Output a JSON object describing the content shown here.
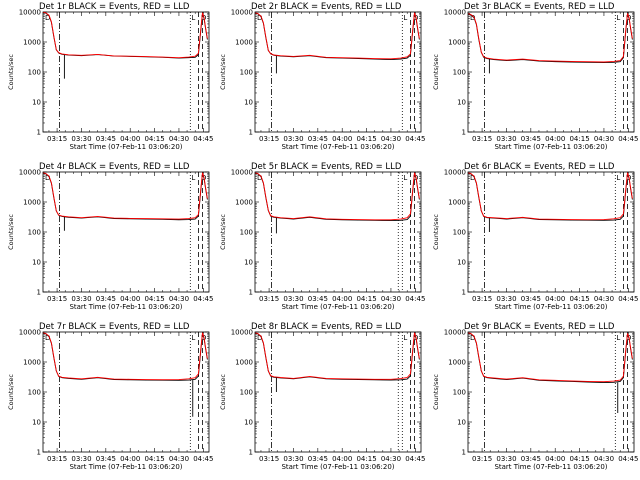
{
  "chart_data": {
    "type": "line",
    "layout": "3x3 grid",
    "shared": {
      "xlabel": "Start Time (07-Feb-11 03:06:20)",
      "ylabel": "Counts/sec",
      "x_tick_labels": [
        "03:15",
        "03:30",
        "03:45",
        "04:00",
        "04:15",
        "04:30",
        "04:45"
      ],
      "x_tick_minutes": [
        15,
        30,
        45,
        60,
        75,
        90,
        105
      ],
      "x_range_minutes": [
        6.33,
        108.5
      ],
      "y_scale": "log",
      "y_range": [
        1,
        10000
      ],
      "y_tick_labels": [
        "1",
        "10",
        "100",
        "1000",
        "10000"
      ],
      "y_tick_values": [
        1,
        10,
        100,
        1000,
        10000
      ],
      "grid": false,
      "series_colors": {
        "events": "#000000",
        "lld": "#ff0000"
      },
      "corner_marks": [
        "D",
        "L",
        "D"
      ]
    },
    "panels": [
      {
        "title": "Det 1r BLACK = Events, RED = LLD",
        "black_x": [
          6.5,
          8,
          10,
          11.5,
          13,
          14.5,
          16,
          18,
          22,
          30,
          40,
          50,
          60,
          70,
          80,
          90,
          96,
          100,
          102,
          103.5,
          104.5,
          105.5,
          106.5,
          107.5
        ],
        "black_y": [
          9500,
          9200,
          7500,
          4500,
          1500,
          550,
          430,
          390,
          370,
          350,
          380,
          340,
          330,
          320,
          310,
          290,
          300,
          310,
          380,
          2600,
          9000,
          6000,
          2500,
          1200
        ],
        "red_x": [
          6.5,
          8,
          10,
          11.5,
          13,
          14.5,
          16,
          18,
          22,
          30,
          40,
          50,
          60,
          70,
          80,
          90,
          96,
          100,
          102,
          103.5,
          104.5,
          105.5,
          106.5,
          107.5
        ],
        "red_y": [
          9800,
          9400,
          7800,
          4700,
          1600,
          560,
          440,
          400,
          375,
          360,
          385,
          345,
          335,
          325,
          315,
          300,
          315,
          335,
          420,
          3000,
          9500,
          6500,
          2700,
          1300
        ],
        "spike": {
          "x": 19.5,
          "y": 60
        },
        "dash_dot_x": 16.5,
        "dotted_x": [
          97
        ],
        "dashed_x": [
          102,
          104.5
        ]
      },
      {
        "title": "Det 2r BLACK = Events, RED = LLD",
        "black_x": [
          6.5,
          8,
          10,
          11.5,
          13,
          14.5,
          16,
          18,
          22,
          30,
          40,
          50,
          60,
          70,
          80,
          90,
          96,
          100,
          102,
          103.5,
          104.5,
          105.5,
          106.5,
          107.5
        ],
        "black_y": [
          9000,
          8800,
          7000,
          4200,
          1400,
          520,
          400,
          360,
          340,
          320,
          350,
          300,
          290,
          280,
          270,
          260,
          270,
          290,
          360,
          2600,
          9000,
          6000,
          2500,
          1200
        ],
        "red_x": [
          6.5,
          8,
          10,
          11.5,
          13,
          14.5,
          16,
          18,
          22,
          30,
          40,
          50,
          60,
          70,
          80,
          90,
          96,
          100,
          102,
          103.5,
          104.5,
          105.5,
          106.5,
          107.5
        ],
        "red_y": [
          9300,
          9000,
          7300,
          4400,
          1500,
          530,
          410,
          370,
          350,
          330,
          360,
          310,
          300,
          290,
          280,
          275,
          290,
          320,
          400,
          3000,
          9500,
          6500,
          2700,
          1300
        ],
        "spike": {
          "x": 19.5,
          "y": 90
        },
        "dash_dot_x": 16.5,
        "dotted_x": [
          97
        ],
        "dashed_x": [
          102,
          104.5
        ]
      },
      {
        "title": "Det 3r BLACK = Events, RED = LLD",
        "black_x": [
          6.5,
          8,
          10,
          11.5,
          13,
          14.5,
          16,
          18,
          22,
          30,
          40,
          50,
          60,
          70,
          80,
          90,
          96,
          100,
          102,
          103.5,
          104.5,
          105.5,
          106.5,
          107.5
        ],
        "black_y": [
          8500,
          8000,
          6500,
          3800,
          1200,
          450,
          310,
          280,
          260,
          240,
          260,
          230,
          220,
          215,
          210,
          205,
          210,
          220,
          300,
          2500,
          8500,
          6000,
          2500,
          1200
        ],
        "red_x": [
          6.5,
          8,
          10,
          11.5,
          13,
          14.5,
          16,
          18,
          22,
          30,
          40,
          50,
          60,
          70,
          80,
          90,
          96,
          100,
          102,
          103.5,
          104.5,
          105.5,
          106.5,
          107.5
        ],
        "red_y": [
          8800,
          8300,
          6800,
          4000,
          1300,
          460,
          320,
          290,
          270,
          250,
          270,
          240,
          230,
          225,
          220,
          215,
          225,
          240,
          330,
          2900,
          9000,
          6500,
          2700,
          1300
        ],
        "spike": {
          "x": 19.5,
          "y": 90
        },
        "dash_dot_x": 16.5,
        "dotted_x": [
          97
        ],
        "dashed_x": [
          102,
          104.5
        ]
      },
      {
        "title": "Det 4r BLACK = Events, RED = LLD",
        "black_x": [
          6.5,
          8,
          10,
          11.5,
          13,
          14.5,
          16,
          18,
          22,
          30,
          40,
          50,
          60,
          70,
          80,
          90,
          96,
          100,
          102,
          103.5,
          104.5,
          105.5,
          106.5,
          107.5
        ],
        "black_y": [
          9000,
          8700,
          7000,
          4200,
          1400,
          500,
          360,
          330,
          310,
          290,
          320,
          280,
          275,
          270,
          265,
          255,
          260,
          270,
          340,
          2600,
          9000,
          6000,
          2500,
          1200
        ],
        "red_x": [
          6.5,
          8,
          10,
          11.5,
          13,
          14.5,
          16,
          18,
          22,
          30,
          40,
          50,
          60,
          70,
          80,
          90,
          96,
          100,
          102,
          103.5,
          104.5,
          105.5,
          106.5,
          107.5
        ],
        "red_y": [
          9300,
          9000,
          7300,
          4400,
          1500,
          510,
          370,
          340,
          320,
          300,
          330,
          290,
          285,
          280,
          275,
          270,
          280,
          300,
          380,
          3000,
          9500,
          6500,
          2700,
          1300
        ],
        "spike": {
          "x": 19.5,
          "y": 110
        },
        "dash_dot_x": 16.5,
        "dotted_x": [
          97
        ],
        "dashed_x": [
          102,
          104.5
        ]
      },
      {
        "title": "Det 5r BLACK = Events, RED = LLD",
        "black_x": [
          6.5,
          8,
          10,
          11.5,
          13,
          14.5,
          16,
          18,
          22,
          30,
          40,
          50,
          60,
          70,
          80,
          90,
          96,
          100,
          102,
          103.5,
          104.5,
          105.5,
          106.5,
          107.5
        ],
        "black_y": [
          9000,
          8700,
          7000,
          4200,
          1400,
          520,
          340,
          310,
          290,
          270,
          310,
          265,
          255,
          250,
          245,
          240,
          245,
          260,
          340,
          2600,
          9000,
          6000,
          2500,
          1200
        ],
        "red_x": [
          6.5,
          8,
          10,
          11.5,
          13,
          14.5,
          16,
          18,
          22,
          30,
          40,
          50,
          60,
          70,
          80,
          90,
          96,
          100,
          102,
          103.5,
          104.5,
          105.5,
          106.5,
          107.5
        ],
        "red_y": [
          9300,
          9000,
          7300,
          4400,
          1500,
          530,
          350,
          320,
          300,
          280,
          320,
          275,
          265,
          260,
          255,
          255,
          270,
          300,
          400,
          3000,
          9500,
          6500,
          2700,
          1300
        ],
        "spike": {
          "x": 19.5,
          "y": 90
        },
        "dash_dot_x": 16.5,
        "dotted_x": [
          94.5,
          97
        ],
        "dashed_x": [
          102,
          104.5
        ]
      },
      {
        "title": "Det 6r BLACK = Events, RED = LLD",
        "black_x": [
          6.5,
          8,
          10,
          11.5,
          13,
          14.5,
          16,
          18,
          22,
          30,
          40,
          50,
          60,
          70,
          80,
          90,
          96,
          100,
          102,
          103.5,
          104.5,
          105.5,
          106.5,
          107.5
        ],
        "black_y": [
          9000,
          8700,
          7000,
          4200,
          1400,
          500,
          330,
          300,
          290,
          270,
          300,
          260,
          255,
          250,
          248,
          245,
          250,
          265,
          340,
          2600,
          9000,
          6000,
          2500,
          1200
        ],
        "red_x": [
          6.5,
          8,
          10,
          11.5,
          13,
          14.5,
          16,
          18,
          22,
          30,
          40,
          50,
          60,
          70,
          80,
          90,
          96,
          100,
          102,
          103.5,
          104.5,
          105.5,
          106.5,
          107.5
        ],
        "red_y": [
          9300,
          9000,
          7300,
          4400,
          1500,
          510,
          340,
          310,
          300,
          280,
          310,
          270,
          265,
          260,
          258,
          260,
          275,
          300,
          400,
          3000,
          9500,
          6500,
          2700,
          1300
        ],
        "spike": {
          "x": 19.5,
          "y": 100
        },
        "dash_dot_x": 16.5,
        "dotted_x": [
          97
        ],
        "dashed_x": [
          102,
          104.5
        ]
      },
      {
        "title": "Det 7r BLACK = Events, RED = LLD",
        "black_x": [
          6.5,
          8,
          10,
          11.5,
          13,
          14.5,
          16,
          18,
          22,
          30,
          40,
          50,
          60,
          70,
          80,
          90,
          96,
          100,
          102,
          103.5,
          104.5,
          105.5,
          106.5,
          107.5
        ],
        "black_y": [
          9000,
          8700,
          7000,
          4200,
          1400,
          500,
          330,
          300,
          285,
          265,
          300,
          260,
          255,
          250,
          248,
          245,
          250,
          265,
          340,
          2600,
          9000,
          6000,
          2500,
          1200
        ],
        "red_x": [
          6.5,
          8,
          10,
          11.5,
          13,
          14.5,
          16,
          18,
          22,
          30,
          40,
          50,
          60,
          70,
          80,
          90,
          96,
          100,
          102,
          103.5,
          104.5,
          105.5,
          106.5,
          107.5
        ],
        "red_y": [
          9300,
          9000,
          7300,
          4400,
          1500,
          510,
          340,
          310,
          295,
          275,
          310,
          270,
          265,
          260,
          258,
          260,
          275,
          300,
          400,
          3000,
          9500,
          6500,
          2700,
          1300
        ],
        "spike": {
          "x": 98.5,
          "y": 15
        },
        "dash_dot_x": 16.5,
        "dotted_x": [
          97
        ],
        "dashed_x": [
          102,
          104.5
        ]
      },
      {
        "title": "Det 8r BLACK = Events, RED = LLD",
        "black_x": [
          6.5,
          8,
          10,
          11.5,
          13,
          14.5,
          16,
          18,
          22,
          30,
          40,
          50,
          60,
          70,
          80,
          90,
          96,
          100,
          102,
          103.5,
          104.5,
          105.5,
          106.5,
          107.5
        ],
        "black_y": [
          9000,
          8700,
          7000,
          4200,
          1400,
          500,
          340,
          310,
          295,
          275,
          320,
          275,
          265,
          260,
          255,
          250,
          255,
          270,
          345,
          2600,
          9000,
          6000,
          2500,
          1200
        ],
        "red_x": [
          6.5,
          8,
          10,
          11.5,
          13,
          14.5,
          16,
          18,
          22,
          30,
          40,
          50,
          60,
          70,
          80,
          90,
          96,
          100,
          102,
          103.5,
          104.5,
          105.5,
          106.5,
          107.5
        ],
        "red_y": [
          9300,
          9000,
          7300,
          4400,
          1500,
          510,
          350,
          320,
          305,
          285,
          330,
          285,
          275,
          270,
          265,
          265,
          280,
          305,
          400,
          3000,
          9500,
          6500,
          2700,
          1300
        ],
        "spike": {
          "x": 19.5,
          "y": 100
        },
        "dash_dot_x": 16.5,
        "dotted_x": [
          94.5,
          97
        ],
        "dashed_x": [
          102,
          104.5
        ]
      },
      {
        "title": "Det 9r BLACK = Events, RED = LLD",
        "black_x": [
          6.5,
          8,
          10,
          11.5,
          13,
          14.5,
          16,
          18,
          22,
          30,
          40,
          50,
          60,
          70,
          80,
          90,
          96,
          100,
          102,
          103.5,
          104.5,
          105.5,
          106.5,
          107.5
        ],
        "black_y": [
          9000,
          8700,
          7000,
          4200,
          1400,
          500,
          330,
          300,
          285,
          260,
          290,
          245,
          235,
          225,
          215,
          205,
          210,
          225,
          300,
          2500,
          8500,
          6000,
          2500,
          1200
        ],
        "red_x": [
          6.5,
          8,
          10,
          11.5,
          13,
          14.5,
          16,
          18,
          22,
          30,
          40,
          50,
          60,
          70,
          80,
          90,
          96,
          100,
          102,
          103.5,
          104.5,
          105.5,
          106.5,
          107.5
        ],
        "red_y": [
          9300,
          9000,
          7300,
          4400,
          1500,
          510,
          340,
          310,
          295,
          270,
          300,
          255,
          245,
          235,
          225,
          220,
          230,
          250,
          340,
          2900,
          9000,
          6500,
          2700,
          1300
        ],
        "spike": {
          "x": 98.5,
          "y": 20
        },
        "dash_dot_x": 16.5,
        "dotted_x": [
          97
        ],
        "dashed_x": [
          102,
          104.5
        ]
      }
    ]
  }
}
